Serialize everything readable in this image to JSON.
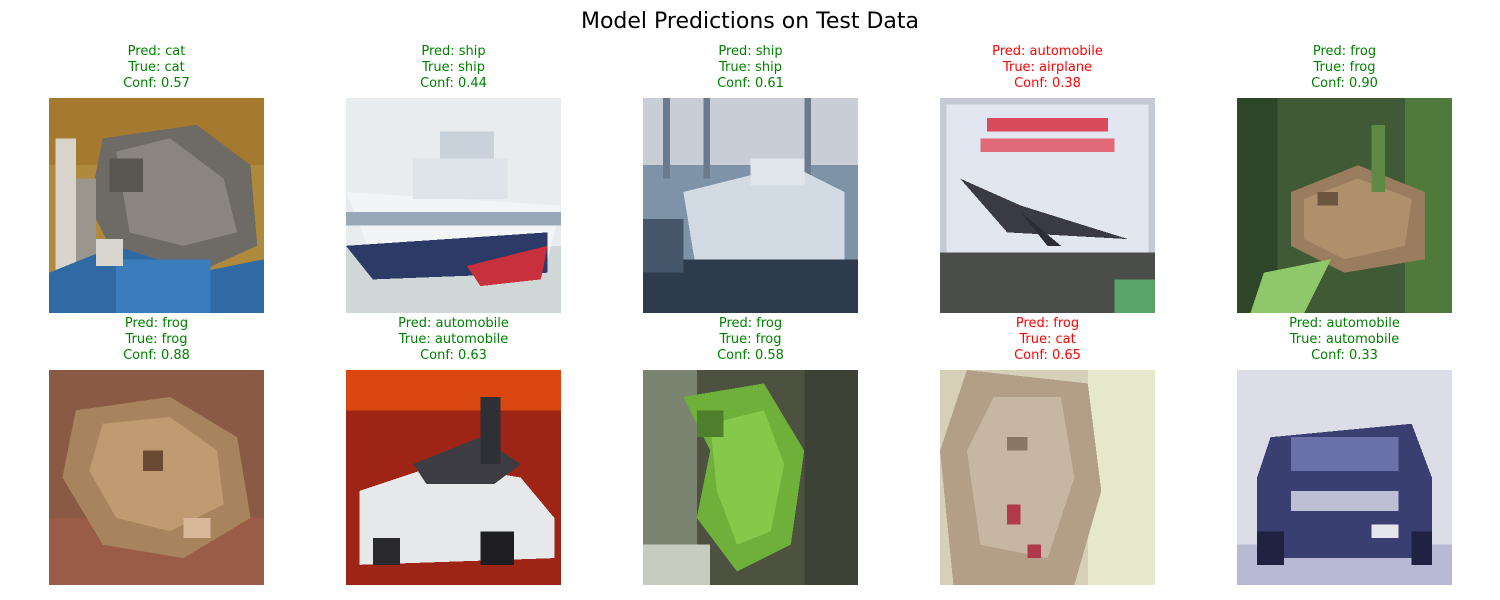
{
  "figure": {
    "title": "Model Predictions on Test Data",
    "colors": {
      "correct": "#008000",
      "incorrect": "#ff0000"
    },
    "panels": [
      {
        "pred": "Pred: cat",
        "true": "True: cat",
        "conf": "Conf: 0.57",
        "correct": true,
        "image": "cat-on-blue-fabric-photo"
      },
      {
        "pred": "Pred: ship",
        "true": "True: ship",
        "conf": "Conf: 0.44",
        "correct": true,
        "image": "white-ship-photo"
      },
      {
        "pred": "Pred: ship",
        "true": "True: ship",
        "conf": "Conf: 0.61",
        "correct": true,
        "image": "docked-ship-photo"
      },
      {
        "pred": "Pred: automobile",
        "true": "True: airplane",
        "conf": "Conf: 0.38",
        "correct": false,
        "image": "concorde-sign-photo"
      },
      {
        "pred": "Pred: frog",
        "true": "True: frog",
        "conf": "Conf: 0.90",
        "correct": true,
        "image": "toad-in-grass-photo"
      },
      {
        "pred": "Pred: frog",
        "true": "True: frog",
        "conf": "Conf: 0.88",
        "correct": true,
        "image": "brown-frog-photo"
      },
      {
        "pred": "Pred: automobile",
        "true": "True: automobile",
        "conf": "Conf: 0.63",
        "correct": true,
        "image": "white-car-photo"
      },
      {
        "pred": "Pred: frog",
        "true": "True: frog",
        "conf": "Conf: 0.58",
        "correct": true,
        "image": "green-frog-photo"
      },
      {
        "pred": "Pred: frog",
        "true": "True: cat",
        "conf": "Conf: 0.65",
        "correct": false,
        "image": "cat-closeup-photo"
      },
      {
        "pred": "Pred: automobile",
        "true": "True: automobile",
        "conf": "Conf: 0.33",
        "correct": true,
        "image": "blue-suv-photo"
      }
    ]
  }
}
